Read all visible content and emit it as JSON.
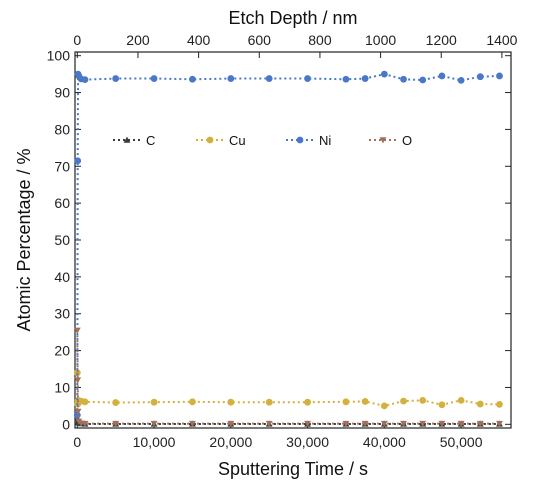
{
  "chart_data": {
    "type": "line",
    "xlabel": "Sputtering Time / s",
    "x2label": "Etch Depth / nm",
    "ylabel": "Atomic Percentage / %",
    "xlim": [
      -300,
      56500
    ],
    "ylim": [
      -1,
      101
    ],
    "x2lim": [
      -7.6,
      1430
    ],
    "xticks": [
      0,
      10000,
      20000,
      30000,
      40000,
      50000
    ],
    "xtick_labels": [
      "0",
      "10,000",
      "20,000",
      "30,000",
      "40,000",
      "50,000"
    ],
    "x2ticks": [
      0,
      200,
      400,
      600,
      800,
      1000,
      1200,
      1400
    ],
    "x2tick_labels": [
      "0",
      "200",
      "400",
      "600",
      "800",
      "1000",
      "1200",
      "1400"
    ],
    "yticks": [
      0,
      10,
      20,
      30,
      40,
      50,
      60,
      70,
      80,
      90,
      100
    ],
    "ytick_labels": [
      "0",
      "10",
      "20",
      "30",
      "40",
      "50",
      "60",
      "70",
      "80",
      "90",
      "100"
    ],
    "grid": false,
    "legend_position": "upper-left, inside",
    "x": [
      0,
      50,
      100,
      200,
      500,
      1000,
      5000,
      10000,
      15000,
      20000,
      25000,
      30000,
      35000,
      37500,
      40000,
      42500,
      45000,
      47500,
      50000,
      52500,
      55000
    ],
    "series": [
      {
        "name": "C",
        "color": "#3a3a3a",
        "marker": "triangle-up",
        "values": [
          3.0,
          1.5,
          0.8,
          0.4,
          0.2,
          0.1,
          0.1,
          0.1,
          0.1,
          0.1,
          0.1,
          0.1,
          0.1,
          0.1,
          0.1,
          0.1,
          0.1,
          0.1,
          0.1,
          0.1,
          0.1
        ]
      },
      {
        "name": "Cu",
        "color": "#d4b03c",
        "marker": "circle",
        "values": [
          14.0,
          5.5,
          6.5,
          6.4,
          6.3,
          6.1,
          5.9,
          6.0,
          6.1,
          6.0,
          6.0,
          6.0,
          6.1,
          6.2,
          5.0,
          6.3,
          6.5,
          5.3,
          6.5,
          5.5,
          5.4
        ]
      },
      {
        "name": "Ni",
        "color": "#4a78c8",
        "marker": "circle",
        "values": [
          2.5,
          71.5,
          95.0,
          94.5,
          93.7,
          93.5,
          93.8,
          93.8,
          93.6,
          93.8,
          93.8,
          93.8,
          93.6,
          93.8,
          95.0,
          93.6,
          93.4,
          94.5,
          93.3,
          94.3,
          94.5
        ]
      },
      {
        "name": "O",
        "color": "#a0705a",
        "marker": "triangle-down",
        "values": [
          25.5,
          12.0,
          3.5,
          0.8,
          0.3,
          0.2,
          0.2,
          0.2,
          0.2,
          0.2,
          0.2,
          0.2,
          0.2,
          0.2,
          0.2,
          0.2,
          0.2,
          0.2,
          0.2,
          0.2,
          0.2
        ]
      }
    ]
  }
}
